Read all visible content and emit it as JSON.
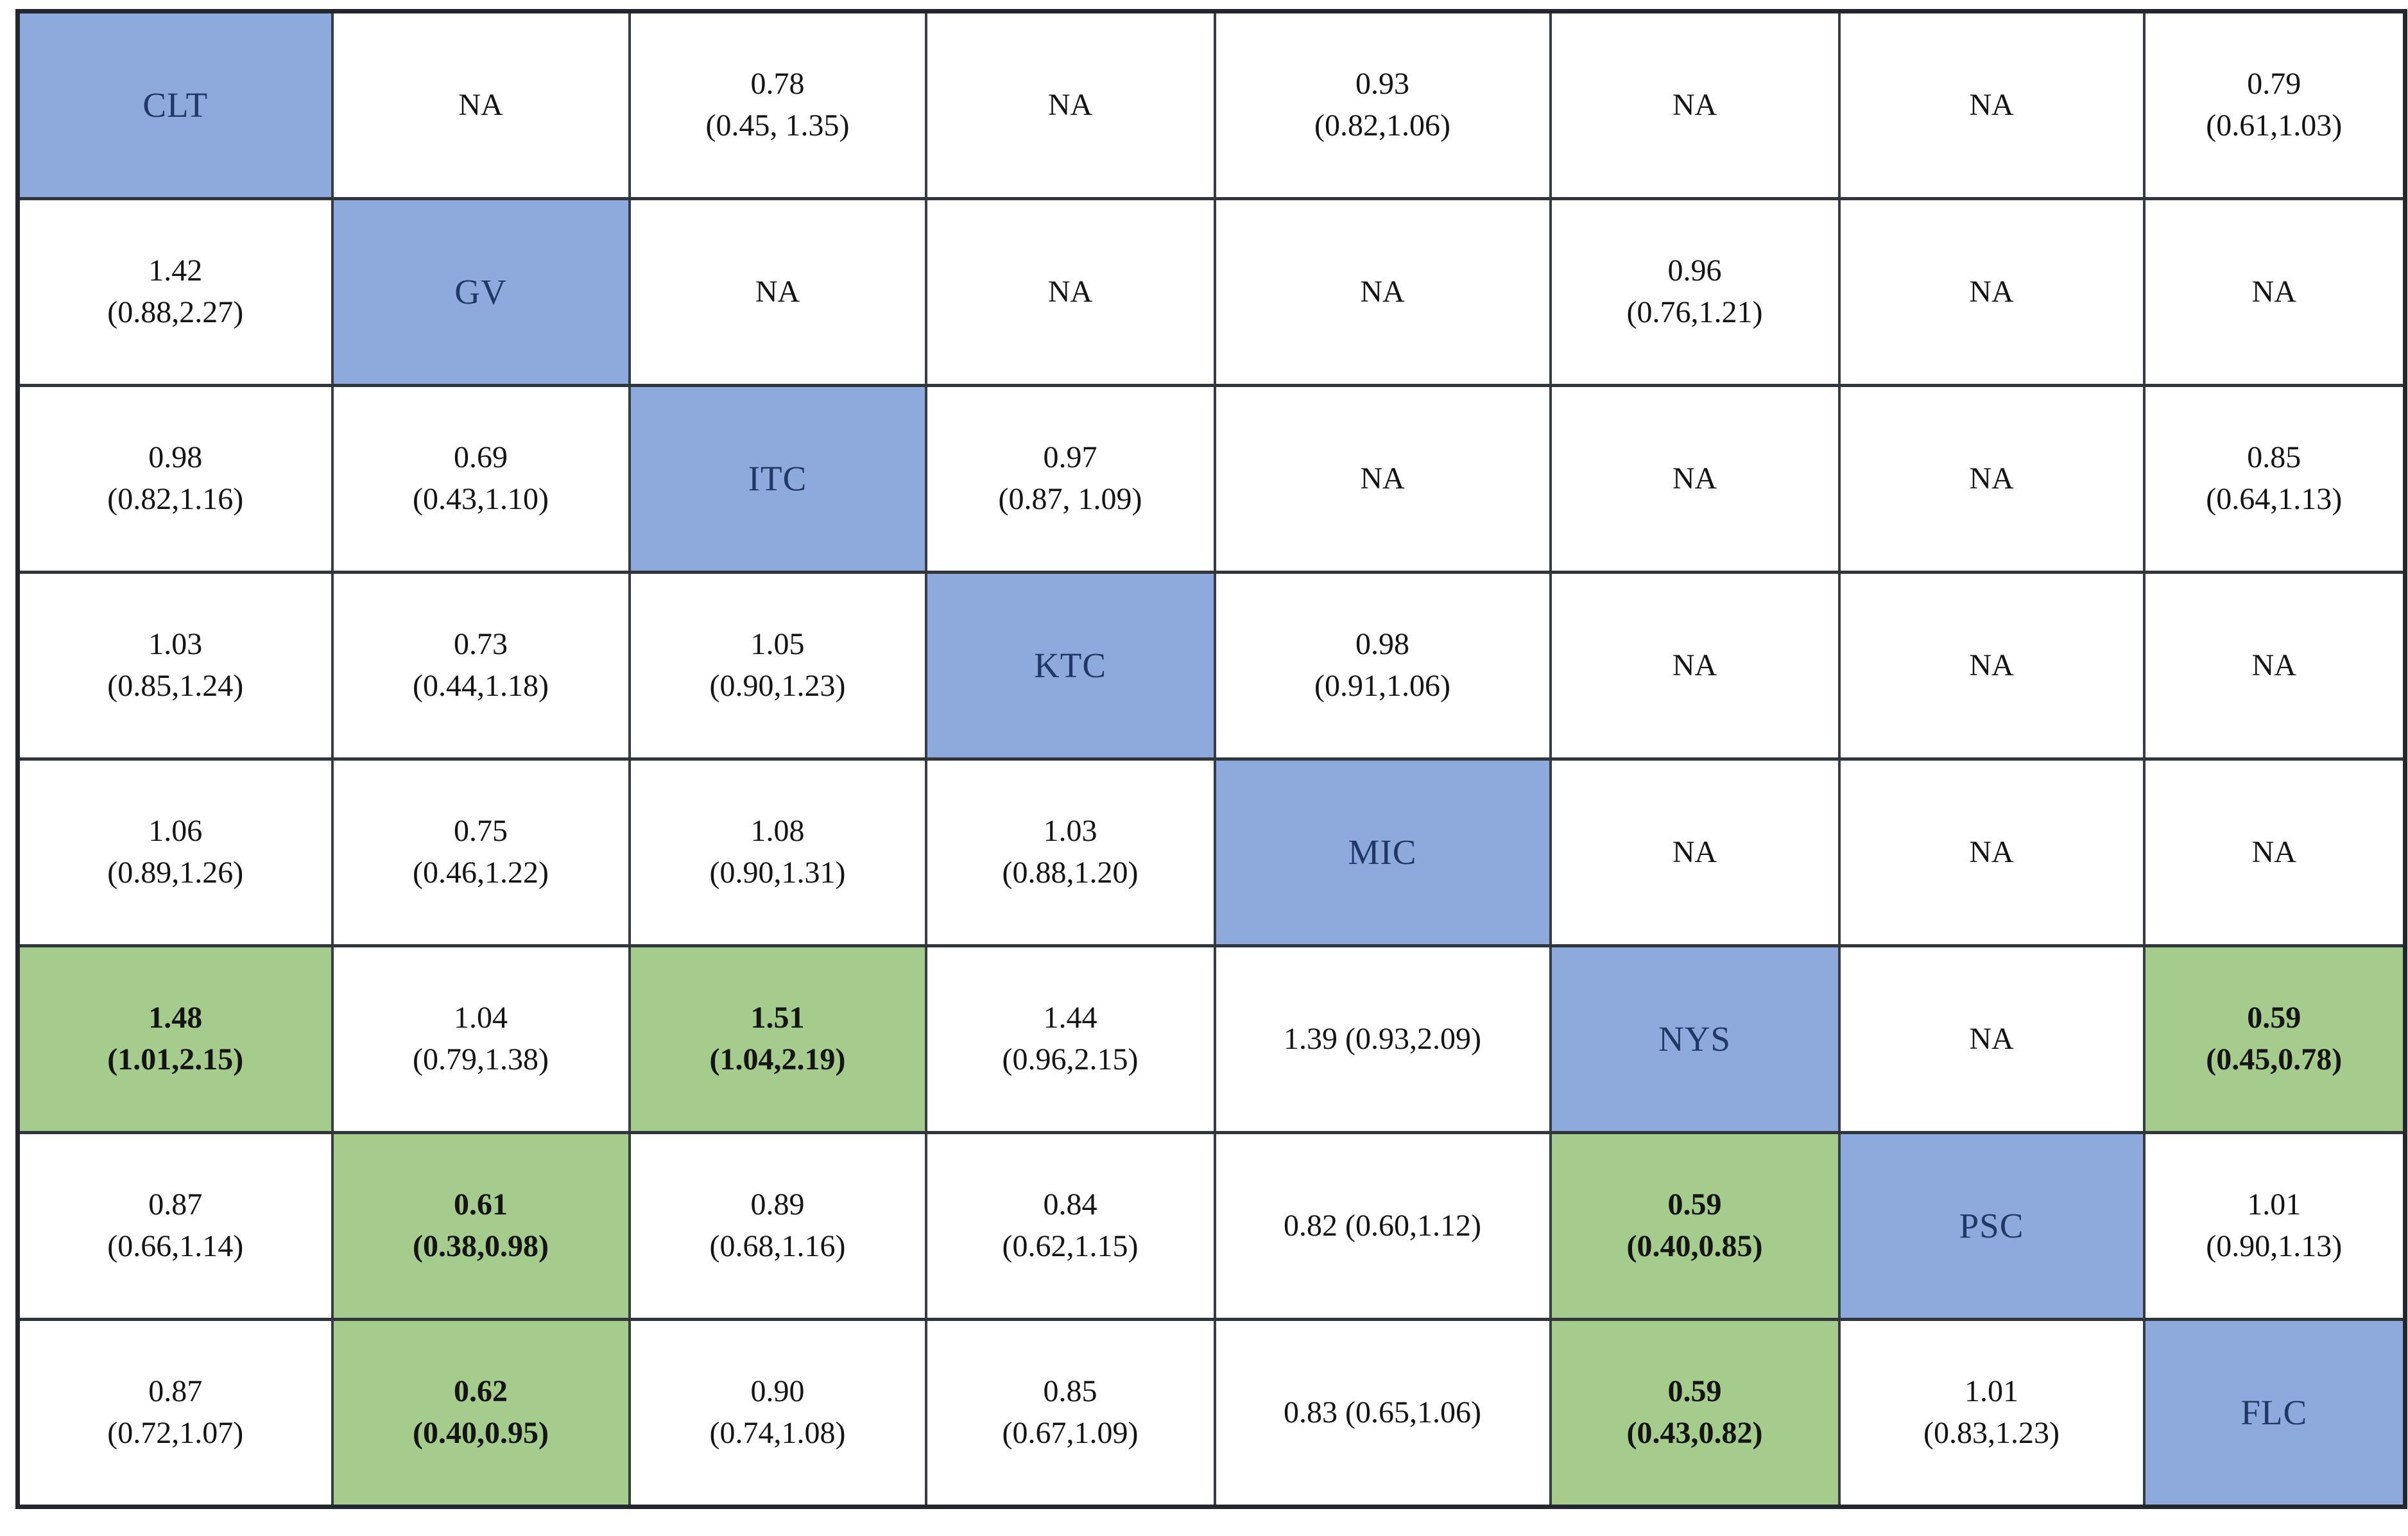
{
  "chart_data": {
    "type": "table",
    "title": "",
    "treatments": [
      "CLT",
      "GV",
      "ITC",
      "KTC",
      "MIC",
      "NYS",
      "PSC",
      "FLC"
    ],
    "colors": {
      "diagonal_blue": "#8EA9DC",
      "significant_green": "#A5CB8D",
      "diagonal_label_text": "#1F3864",
      "grid_border": "#31363D",
      "cell_text": "#141414"
    },
    "rows": [
      [
        {
          "kind": "diag",
          "v": "CLT"
        },
        {
          "kind": "na",
          "v": "NA"
        },
        {
          "kind": "plain",
          "v": "0.78",
          "ci": "(0.45, 1.35)"
        },
        {
          "kind": "na",
          "v": "NA"
        },
        {
          "kind": "plain",
          "v": "0.93",
          "ci": "(0.82,1.06)"
        },
        {
          "kind": "na",
          "v": "NA"
        },
        {
          "kind": "na",
          "v": "NA"
        },
        {
          "kind": "plain",
          "v": "0.79",
          "ci": "(0.61,1.03)"
        }
      ],
      [
        {
          "kind": "plain",
          "v": "1.42",
          "ci": "(0.88,2.27)"
        },
        {
          "kind": "diag",
          "v": "GV"
        },
        {
          "kind": "na",
          "v": "NA"
        },
        {
          "kind": "na",
          "v": "NA"
        },
        {
          "kind": "na",
          "v": "NA"
        },
        {
          "kind": "plain",
          "v": "0.96",
          "ci": "(0.76,1.21)"
        },
        {
          "kind": "na",
          "v": "NA"
        },
        {
          "kind": "na",
          "v": "NA"
        }
      ],
      [
        {
          "kind": "plain",
          "v": "0.98",
          "ci": "(0.82,1.16)"
        },
        {
          "kind": "plain",
          "v": "0.69",
          "ci": "(0.43,1.10)"
        },
        {
          "kind": "diag",
          "v": "ITC"
        },
        {
          "kind": "plain",
          "v": "0.97",
          "ci": "(0.87, 1.09)"
        },
        {
          "kind": "na",
          "v": "NA"
        },
        {
          "kind": "na",
          "v": "NA"
        },
        {
          "kind": "na",
          "v": "NA"
        },
        {
          "kind": "plain",
          "v": "0.85",
          "ci": "(0.64,1.13)"
        }
      ],
      [
        {
          "kind": "plain",
          "v": "1.03",
          "ci": "(0.85,1.24)"
        },
        {
          "kind": "plain",
          "v": "0.73",
          "ci": "(0.44,1.18)"
        },
        {
          "kind": "plain",
          "v": "1.05",
          "ci": "(0.90,1.23)"
        },
        {
          "kind": "diag",
          "v": "KTC"
        },
        {
          "kind": "plain",
          "v": "0.98",
          "ci": "(0.91,1.06)"
        },
        {
          "kind": "na",
          "v": "NA"
        },
        {
          "kind": "na",
          "v": "NA"
        },
        {
          "kind": "na",
          "v": "NA"
        }
      ],
      [
        {
          "kind": "plain",
          "v": "1.06",
          "ci": "(0.89,1.26)"
        },
        {
          "kind": "plain",
          "v": "0.75",
          "ci": "(0.46,1.22)"
        },
        {
          "kind": "plain",
          "v": "1.08",
          "ci": "(0.90,1.31)"
        },
        {
          "kind": "plain",
          "v": "1.03",
          "ci": "(0.88,1.20)"
        },
        {
          "kind": "diag",
          "v": "MIC"
        },
        {
          "kind": "na",
          "v": "NA"
        },
        {
          "kind": "na",
          "v": "NA"
        },
        {
          "kind": "na",
          "v": "NA"
        }
      ],
      [
        {
          "kind": "sig",
          "v": "1.48",
          "ci": "(1.01,2.15)"
        },
        {
          "kind": "plain",
          "v": "1.04",
          "ci": "(0.79,1.38)"
        },
        {
          "kind": "sig",
          "v": "1.51",
          "ci": "(1.04,2.19)"
        },
        {
          "kind": "plain",
          "v": "1.44",
          "ci": "(0.96,2.15)"
        },
        {
          "kind": "plain",
          "v": "1.39 (0.93,2.09)",
          "single": true
        },
        {
          "kind": "diag",
          "v": "NYS"
        },
        {
          "kind": "na",
          "v": "NA"
        },
        {
          "kind": "sig",
          "v": "0.59",
          "ci": "(0.45,0.78)"
        }
      ],
      [
        {
          "kind": "plain",
          "v": "0.87",
          "ci": "(0.66,1.14)"
        },
        {
          "kind": "sig",
          "v": "0.61",
          "ci": "(0.38,0.98)"
        },
        {
          "kind": "plain",
          "v": "0.89",
          "ci": "(0.68,1.16)"
        },
        {
          "kind": "plain",
          "v": "0.84",
          "ci": "(0.62,1.15)"
        },
        {
          "kind": "plain",
          "v": "0.82 (0.60,1.12)",
          "single": true
        },
        {
          "kind": "sig",
          "v": "0.59",
          "ci": "(0.40,0.85)"
        },
        {
          "kind": "diag",
          "v": "PSC"
        },
        {
          "kind": "plain",
          "v": "1.01",
          "ci": "(0.90,1.13)"
        }
      ],
      [
        {
          "kind": "plain",
          "v": "0.87",
          "ci": "(0.72,1.07)"
        },
        {
          "kind": "sig",
          "v": "0.62",
          "ci": "(0.40,0.95)"
        },
        {
          "kind": "plain",
          "v": "0.90",
          "ci": "(0.74,1.08)"
        },
        {
          "kind": "plain",
          "v": "0.85",
          "ci": "(0.67,1.09)"
        },
        {
          "kind": "plain",
          "v": "0.83 (0.65,1.06)",
          "single": true
        },
        {
          "kind": "sig",
          "v": "0.59",
          "ci": "(0.43,0.82)"
        },
        {
          "kind": "plain",
          "v": "1.01",
          "ci": "(0.83,1.23)"
        },
        {
          "kind": "diag",
          "v": "FLC"
        }
      ]
    ]
  }
}
